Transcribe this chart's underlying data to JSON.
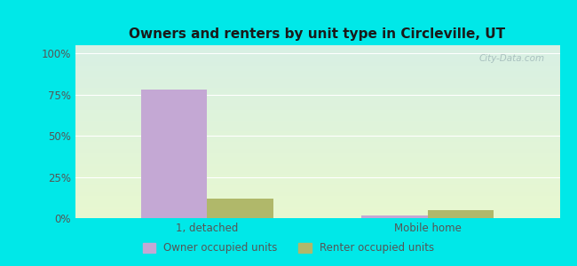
{
  "title": "Owners and renters by unit type in Circleville, UT",
  "categories": [
    "1, detached",
    "Mobile home"
  ],
  "owner_values": [
    78,
    1.5
  ],
  "renter_values": [
    12,
    5
  ],
  "owner_color": "#c4a8d4",
  "renter_color": "#b0b86a",
  "yticks": [
    0,
    25,
    50,
    75,
    100
  ],
  "ytick_labels": [
    "0%",
    "25%",
    "50%",
    "75%",
    "100%"
  ],
  "ylim": [
    0,
    105
  ],
  "bar_width": 0.3,
  "legend_owner": "Owner occupied units",
  "legend_renter": "Renter occupied units",
  "outer_bg": "#00e8e8",
  "title_color": "#1a1a1a",
  "tick_label_color": "#555555",
  "watermark": "City-Data.com",
  "grid_color": "#ffffff"
}
